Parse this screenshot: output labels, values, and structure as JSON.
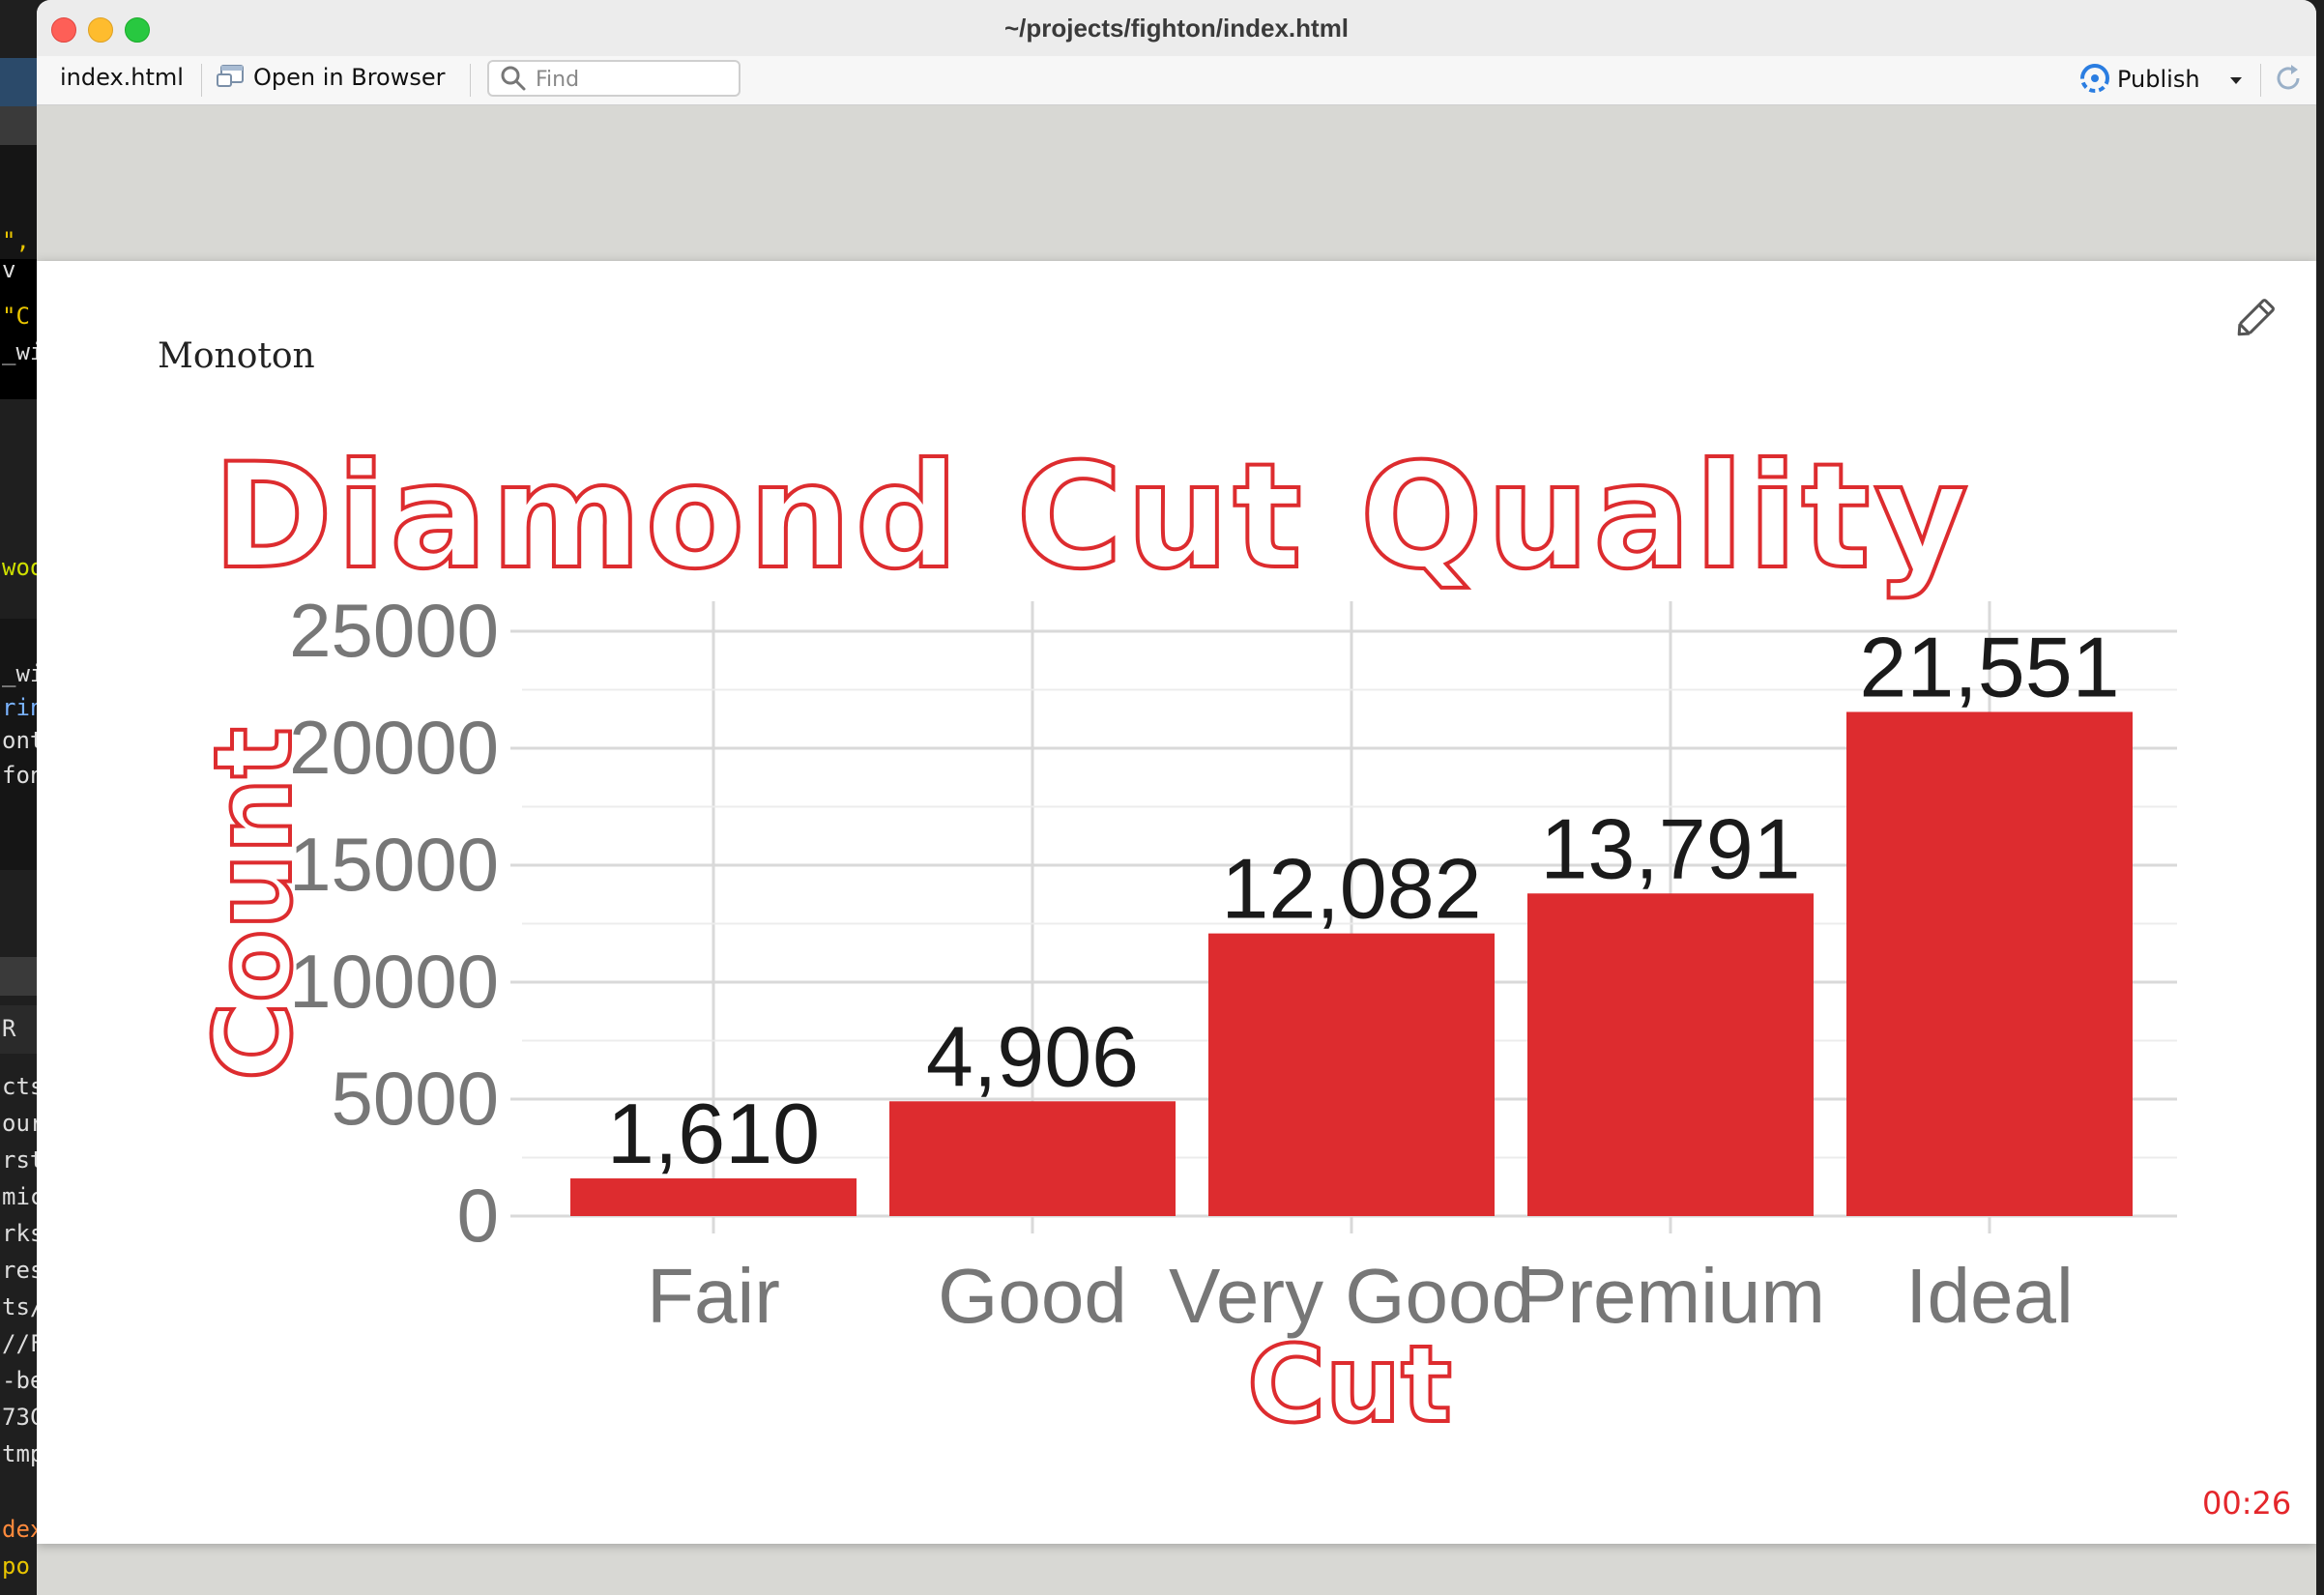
{
  "window": {
    "title": "~/projects/fighton/index.html"
  },
  "toolbar": {
    "file_label": "index.html",
    "open_browser_label": "Open in Browser",
    "find_placeholder": "Find",
    "publish_label": "Publish"
  },
  "slide": {
    "label": "Monoton",
    "timer": "00:26"
  },
  "colors": {
    "accent": "#dd2c2f",
    "axis_text": "#777777",
    "grid": "#d9d9d9",
    "label_text": "#1a1a1a"
  },
  "editor_fragments": [
    "\",",
    "v",
    "\"C",
    "_wi",
    "woo",
    "_wi",
    "rin",
    "ont",
    "fon",
    "R",
    "cts",
    "our",
    "rst",
    "mic",
    "rks",
    "res",
    "ts/",
    "//F",
    "-be",
    "73C",
    "tmp",
    "dex",
    "po"
  ],
  "chart_data": {
    "type": "bar",
    "title": "Diamond Cut Quality",
    "xlabel": "Cut",
    "ylabel": "Count",
    "categories": [
      "Fair",
      "Good",
      "Very Good",
      "Premium",
      "Ideal"
    ],
    "values": [
      1610,
      4906,
      12082,
      13791,
      21551
    ],
    "data_labels": [
      "1,610",
      "4,906",
      "12,082",
      "13,791",
      "21,551"
    ],
    "y_ticks": [
      0,
      5000,
      10000,
      15000,
      20000,
      25000
    ],
    "ylim": [
      0,
      26000
    ],
    "grid": true,
    "legend": "none"
  }
}
